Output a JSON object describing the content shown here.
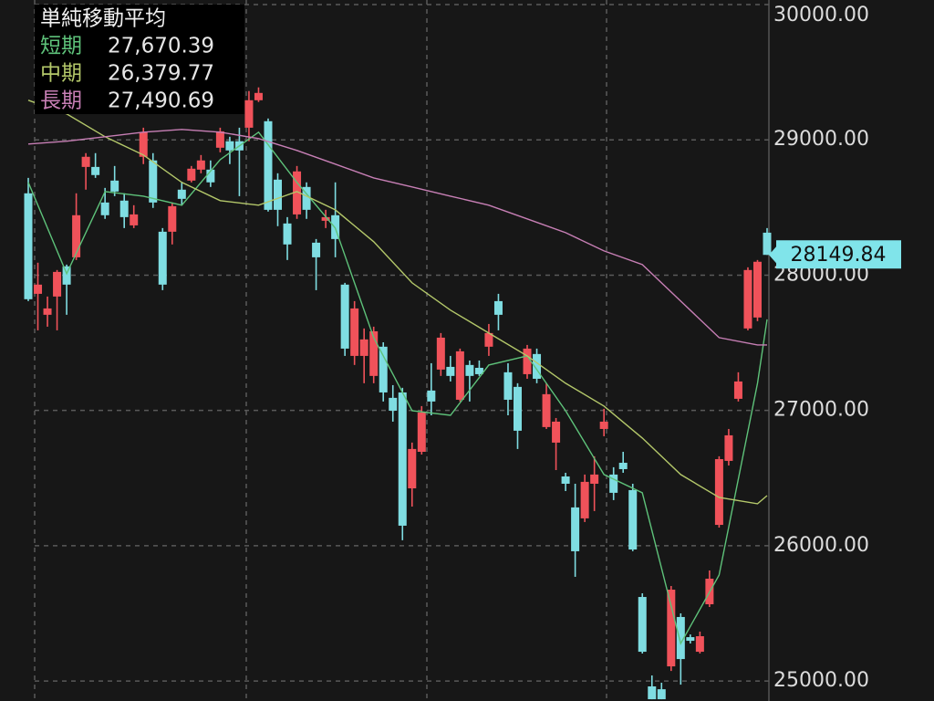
{
  "chart_data": {
    "type": "candlestick",
    "ylim": [
      24852,
      30034
    ],
    "yticks": [
      {
        "value": 25000,
        "label": "25000.00"
      },
      {
        "value": 26000,
        "label": "26000.00"
      },
      {
        "value": 27000,
        "label": "27000.00"
      },
      {
        "value": 28000,
        "label": "28000.00"
      },
      {
        "value": 29000,
        "label": "29000.00"
      },
      {
        "value": 30000,
        "label": "30000.00"
      }
    ],
    "grid": true,
    "up_color": "#f0525a",
    "down_color": "#7fdde2",
    "last_price": 28149.84,
    "open": [
      28605,
      27862,
      27707,
      27842,
      28065,
      28132,
      28800,
      28800,
      28537,
      28699,
      28551,
      28368,
      28875,
      28848,
      28321,
      28321,
      28632,
      28699,
      28780,
      28780,
      28942,
      28990,
      28990,
      29090,
      29293,
      29138,
      28706,
      28382,
      28449,
      28652,
      28240,
      28402,
      28443,
      27930,
      27403,
      27403,
      27255,
      27471,
      27093,
      27133,
      26424,
      26694,
      27147,
      27302,
      27322,
      27079,
      27336,
      27315,
      27471,
      27808,
      27282,
      27174,
      27268,
      27417,
      26877,
      26762,
      26512,
      26283,
      26202,
      26458,
      26863,
      26526,
      26613,
      26411,
      25621,
      24960,
      24939,
      25108,
      25473,
      25324,
      25216,
      25567,
      26154,
      26627,
      27086,
      27606,
      27687,
      28314
    ],
    "high": [
      28719,
      28092,
      27842,
      28038,
      28078,
      28605,
      28902,
      28902,
      28645,
      28807,
      28605,
      28517,
      29090,
      28902,
      28348,
      28537,
      28686,
      28807,
      28888,
      28848,
      29090,
      29023,
      29090,
      29361,
      29388,
      29158,
      28753,
      28429,
      28807,
      28686,
      28267,
      28483,
      28686,
      27943,
      27808,
      27606,
      27619,
      27504,
      27187,
      27167,
      26762,
      27032,
      27349,
      27572,
      27403,
      27457,
      27369,
      27369,
      27639,
      27862,
      27349,
      27201,
      27484,
      27457,
      27201,
      26944,
      26539,
      26458,
      26526,
      26661,
      27012,
      26580,
      26694,
      26458,
      25648,
      25041,
      24987,
      25702,
      25500,
      25344,
      25365,
      25817,
      26661,
      26863,
      27282,
      28058,
      28112,
      28348
    ],
    "low": [
      27808,
      27592,
      27619,
      27592,
      27707,
      28112,
      28632,
      28719,
      28416,
      28584,
      28348,
      28348,
      28821,
      28497,
      27889,
      28227,
      28517,
      28686,
      28753,
      28652,
      28908,
      28821,
      28584,
      28990,
      29280,
      28470,
      28362,
      28112,
      28416,
      28416,
      27889,
      28348,
      28132,
      27403,
      27336,
      27201,
      27201,
      27066,
      26917,
      26040,
      26289,
      26674,
      26964,
      27255,
      27214,
      27066,
      27066,
      27255,
      27403,
      27592,
      26964,
      26715,
      27234,
      27201,
      26863,
      26559,
      26404,
      25770,
      26175,
      26256,
      26809,
      26337,
      26539,
      25959,
      25203,
      24865,
      24865,
      25074,
      24973,
      25277,
      25203,
      25547,
      26134,
      26593,
      27066,
      27592,
      27660,
      28149.84
    ],
    "close": [
      27822,
      27930,
      27754,
      28024,
      27930,
      28443,
      28875,
      28740,
      28443,
      28618,
      28429,
      28449,
      29057,
      28537,
      27930,
      28510,
      28564,
      28787,
      28848,
      28686,
      29063,
      28922,
      28922,
      29293,
      29347,
      28483,
      28483,
      28227,
      28767,
      28483,
      28132,
      28429,
      28267,
      27457,
      27754,
      27525,
      27585,
      27133,
      26998,
      26148,
      26715,
      26985,
      27066,
      27538,
      27255,
      27437,
      27255,
      27268,
      27572,
      27707,
      27079,
      26850,
      27457,
      27234,
      27120,
      26917,
      26458,
      25959,
      26472,
      26526,
      26917,
      26391,
      26566,
      25972,
      25216,
      24865,
      24865,
      25675,
      25162,
      25297,
      25331,
      25756,
      26640,
      26816,
      27214,
      28038,
      28099,
      28149.84
    ],
    "moving_averages": {
      "title": "単純移動平均",
      "series": [
        {
          "name": "短期",
          "color": "#5ec27a",
          "value": 27670.39,
          "value_label": "27,670.39",
          "x": [
            0,
            4,
            8,
            12,
            16,
            20,
            24,
            28,
            32,
            36,
            40,
            44,
            48,
            52,
            56,
            60,
            64,
            68,
            72,
            76,
            77
          ],
          "values": [
            28686,
            28011,
            28618,
            28584,
            28517,
            28854,
            29057,
            28686,
            28348,
            27538,
            26998,
            26964,
            27336,
            27403,
            26998,
            26526,
            26391,
            25277,
            25783,
            27201,
            27673
          ]
        },
        {
          "name": "中期",
          "color": "#b4c86a",
          "value": 26379.77,
          "value_label": "26,379.77",
          "x": [
            0,
            4,
            8,
            12,
            16,
            20,
            24,
            28,
            32,
            36,
            40,
            44,
            48,
            52,
            56,
            60,
            64,
            68,
            72,
            76,
            77
          ],
          "values": [
            29293,
            29192,
            29023,
            28888,
            28686,
            28551,
            28517,
            28618,
            28483,
            28247,
            27943,
            27741,
            27572,
            27403,
            27201,
            27032,
            26796,
            26526,
            26357,
            26310,
            26370
          ]
        },
        {
          "name": "長期",
          "color": "#c77fb5",
          "value": 27490.69,
          "value_label": "27,490.69",
          "x": [
            0,
            4,
            8,
            12,
            16,
            20,
            24,
            28,
            32,
            36,
            40,
            44,
            48,
            52,
            56,
            60,
            64,
            68,
            72,
            76,
            77
          ],
          "values": [
            28969,
            28990,
            29023,
            29057,
            29077,
            29057,
            29010,
            28922,
            28821,
            28719,
            28652,
            28584,
            28517,
            28416,
            28314,
            28179,
            28078,
            27808,
            27538,
            27484,
            27484
          ]
        }
      ]
    }
  }
}
